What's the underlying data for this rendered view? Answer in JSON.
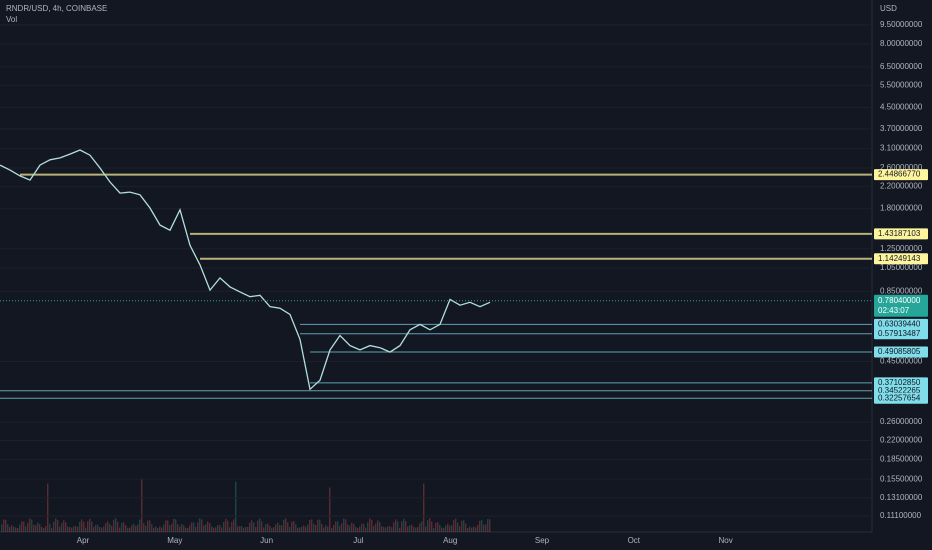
{
  "header": {
    "title": "RNDR/USD, 4h, COINBASE",
    "indicator": "Vol"
  },
  "price_axis": {
    "currency": "USD",
    "scale": "log",
    "ticks": [
      {
        "value": 9.5,
        "label": "9.50000000"
      },
      {
        "value": 8,
        "label": "8.00000000"
      },
      {
        "value": 6.5,
        "label": "6.50000000"
      },
      {
        "value": 5.5,
        "label": "5.50000000"
      },
      {
        "value": 4.5,
        "label": "4.50000000"
      },
      {
        "value": 3.7,
        "label": "3.70000000"
      },
      {
        "value": 3.1,
        "label": "3.10000000"
      },
      {
        "value": 2.6,
        "label": "2.60000000"
      },
      {
        "value": 2.2,
        "label": "2.20000000"
      },
      {
        "value": 1.8,
        "label": "1.80000000"
      },
      {
        "value": 1.25,
        "label": "1.25000000"
      },
      {
        "value": 1.05,
        "label": "1.05000000"
      },
      {
        "value": 0.85,
        "label": "0.85000000"
      },
      {
        "value": 0.45,
        "label": "0.45000000"
      },
      {
        "value": 0.26,
        "label": "0.26000000"
      },
      {
        "value": 0.22,
        "label": "0.22000000"
      },
      {
        "value": 0.185,
        "label": "0.18500000"
      },
      {
        "value": 0.155,
        "label": "0.15500000"
      },
      {
        "value": 0.131,
        "label": "0.13100000"
      },
      {
        "value": 0.111,
        "label": "0.11100000"
      }
    ]
  },
  "levels": [
    {
      "value": 2.4486677,
      "label": "2.44866770",
      "color": "#fff59d"
    },
    {
      "value": 1.43187103,
      "label": "1.43187103",
      "color": "#fff59d"
    },
    {
      "value": 1.14249143,
      "label": "1.14249143",
      "color": "#fff59d"
    },
    {
      "value": 0.6303944,
      "label": "0.63039440",
      "color": "#80deea"
    },
    {
      "value": 0.57913487,
      "label": "0.57913487",
      "color": "#80deea"
    },
    {
      "value": 0.49085805,
      "label": "0.49085805",
      "color": "#80deea"
    },
    {
      "value": 0.3710285,
      "label": "0.37102850",
      "color": "#80deea"
    },
    {
      "value": 0.34522265,
      "label": "0.34522265",
      "color": "#80deea"
    },
    {
      "value": 0.32257654,
      "label": "0.32257654",
      "color": "#80deea"
    }
  ],
  "current_price": {
    "value": 0.7804,
    "label": "0.78040000",
    "countdown": "02:43:07",
    "color": "#26a69a"
  },
  "time_axis": [
    "Apr",
    "May",
    "Jun",
    "Jul",
    "Aug",
    "Sep",
    "Oct",
    "Nov"
  ],
  "price_path": [
    2.67,
    2.55,
    2.42,
    2.33,
    2.67,
    2.8,
    2.85,
    2.95,
    3.06,
    2.92,
    2.6,
    2.29,
    2.07,
    2.09,
    2.04,
    1.81,
    1.55,
    1.48,
    1.78,
    1.29,
    1.08,
    0.86,
    0.96,
    0.885,
    0.846,
    0.81,
    0.82,
    0.74,
    0.73,
    0.69,
    0.55,
    0.35,
    0.38,
    0.5,
    0.57,
    0.52,
    0.5,
    0.52,
    0.51,
    0.49,
    0.52,
    0.6,
    0.63,
    0.6,
    0.63,
    0.79,
    0.75,
    0.77,
    0.74,
    0.77
  ]
}
